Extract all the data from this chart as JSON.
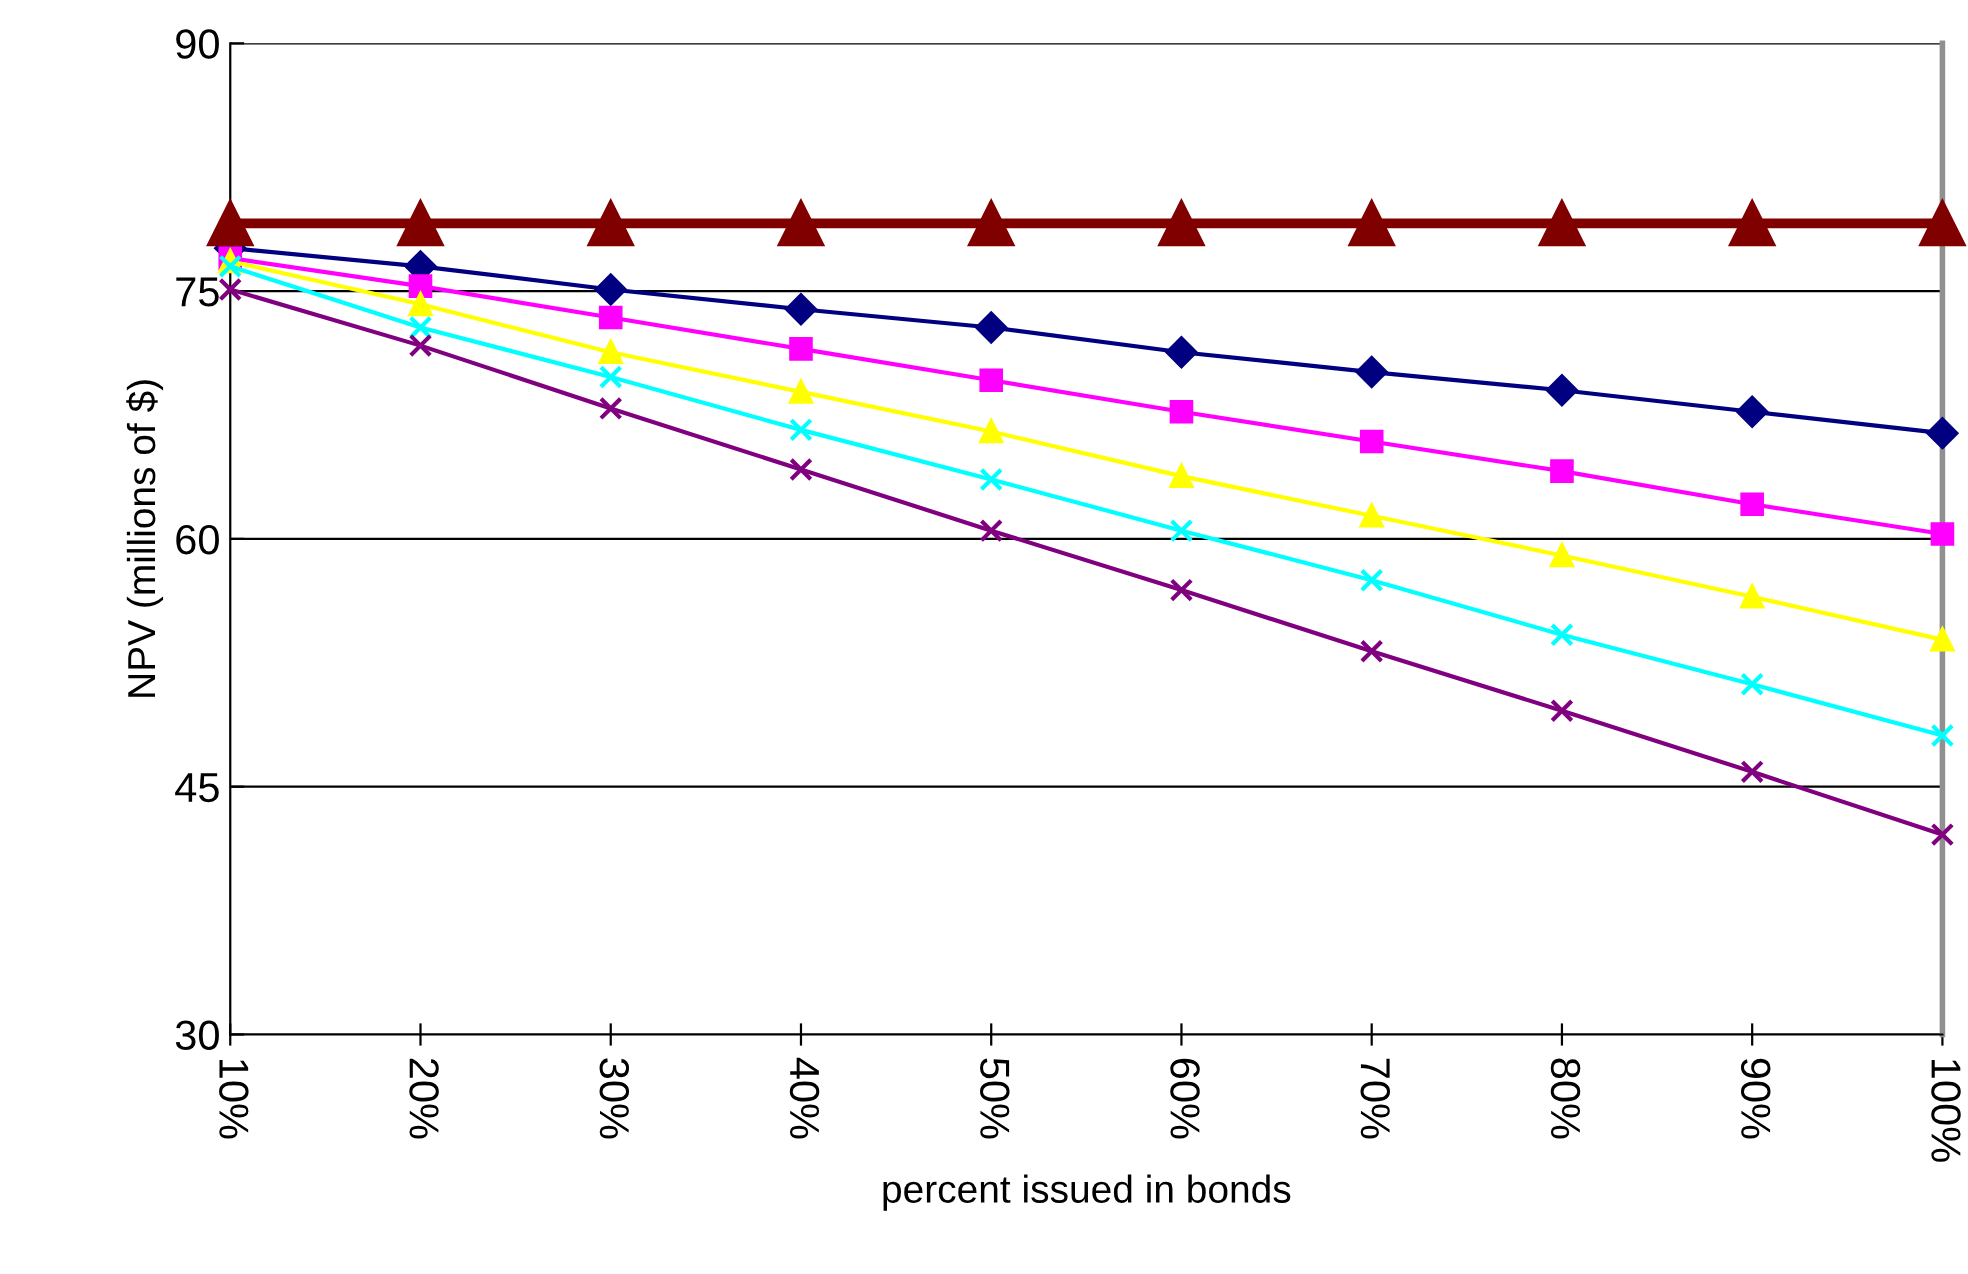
{
  "chart_data": {
    "type": "line",
    "xlabel": "percent issued in bonds",
    "ylabel": "NPV (millions of $)",
    "categories": [
      "10%",
      "20%",
      "30%",
      "40%",
      "50%",
      "60%",
      "70%",
      "80%",
      "90%",
      "100%"
    ],
    "ylim": [
      30,
      90
    ],
    "yticks": [
      30,
      45,
      60,
      75,
      90
    ],
    "grid": "y",
    "legend": false,
    "line_style": "solid",
    "series": [
      {
        "color": "#000080",
        "marker": "diamond",
        "values": [
          77.6,
          76.5,
          75.1,
          73.9,
          72.8,
          71.3,
          70.1,
          69.0,
          67.7,
          66.4
        ]
      },
      {
        "color": "#ff00ff",
        "marker": "square",
        "values": [
          77.0,
          75.3,
          73.4,
          71.5,
          69.6,
          67.7,
          65.9,
          64.1,
          62.1,
          60.3
        ]
      },
      {
        "color": "#ffff00",
        "marker": "triangle",
        "values": [
          76.8,
          74.2,
          71.3,
          68.9,
          66.5,
          63.8,
          61.4,
          59.0,
          56.5,
          53.9
        ]
      },
      {
        "color": "#00ffff",
        "marker": "cross",
        "values": [
          76.5,
          72.8,
          69.8,
          66.6,
          63.6,
          60.5,
          57.5,
          54.2,
          51.2,
          48.1
        ]
      },
      {
        "color": "#800080",
        "marker": "cross",
        "values": [
          75.1,
          71.7,
          67.9,
          64.2,
          60.5,
          56.9,
          53.2,
          49.6,
          45.9,
          42.1
        ]
      },
      {
        "color": "#800000",
        "marker": "triangle",
        "values": [
          79.1,
          79.1,
          79.1,
          79.1,
          79.1,
          79.1,
          79.1,
          79.1,
          79.1,
          79.1
        ]
      }
    ]
  }
}
